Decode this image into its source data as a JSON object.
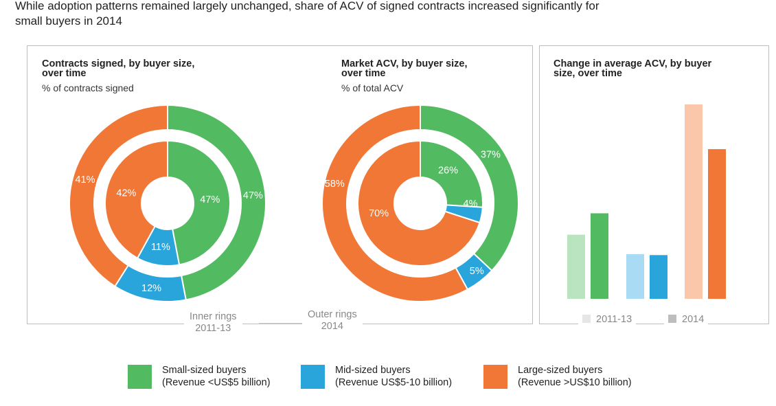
{
  "headline": {
    "line1": "While adoption patterns remained largely unchanged, share of ACV of signed contracts increased significantly for",
    "line2": "small buyers in 2014"
  },
  "colors": {
    "small": "#52ba61",
    "mid": "#29a5dc",
    "large": "#f07735",
    "small_light": "#b9e4bf",
    "mid_light": "#a9dcf4",
    "large_light": "#fac7aa",
    "legend_2011": "#e6e6e6",
    "legend_2014": "#bdbdbd"
  },
  "ring_labels": {
    "inner_line1": "Inner rings",
    "inner_line2": "2011-13",
    "outer_line1": "Outer rings",
    "outer_line2": "2014"
  },
  "bar_legend": {
    "a": "2011-13",
    "b": "2014"
  },
  "legend": [
    {
      "line1": "Small-sized buyers",
      "line2": "(Revenue <US$5 billion)"
    },
    {
      "line1": "Mid-sized buyers",
      "line2": "(Revenue US$5-10 billion)"
    },
    {
      "line1": "Large-sized buyers",
      "line2": "(Revenue >US$10 billion)"
    }
  ],
  "chart_data": [
    {
      "type": "pie",
      "title_line1": "Contracts signed, by buyer size,",
      "title_line2": "over time",
      "subtitle": "% of contracts signed",
      "categories": [
        "Small-sized buyers",
        "Mid-sized buyers",
        "Large-sized buyers"
      ],
      "series": [
        {
          "ring": "outer",
          "period": "2014",
          "values": [
            47,
            12,
            41
          ],
          "labels": [
            "47%",
            "12%",
            "41%"
          ]
        },
        {
          "ring": "inner",
          "period": "2011-13",
          "values": [
            47,
            11,
            42
          ],
          "labels": [
            "47%",
            "11%",
            "42%"
          ]
        }
      ]
    },
    {
      "type": "pie",
      "title_line1": "Market ACV, by buyer size,",
      "title_line2": "over time",
      "subtitle": "% of total ACV",
      "categories": [
        "Small-sized buyers",
        "Mid-sized buyers",
        "Large-sized buyers"
      ],
      "series": [
        {
          "ring": "outer",
          "period": "2014",
          "values": [
            37,
            5,
            58
          ],
          "labels": [
            "37%",
            "5%",
            "58%"
          ]
        },
        {
          "ring": "inner",
          "period": "2011-13",
          "values": [
            26,
            4,
            70
          ],
          "labels": [
            "26%",
            "4%",
            "70%"
          ]
        }
      ]
    },
    {
      "type": "bar",
      "title_line1": "Change in average ACV, by buyer",
      "title_line2": "size, over time",
      "categories": [
        "Small-sized buyers",
        "Mid-sized buyers",
        "Large-sized buyers"
      ],
      "series": [
        {
          "period": "2011-13",
          "values": [
            33,
            23,
            100
          ]
        },
        {
          "period": "2014",
          "values": [
            44,
            22.5,
            77
          ]
        }
      ],
      "ylim": [
        0,
        100
      ],
      "grid": false
    }
  ]
}
